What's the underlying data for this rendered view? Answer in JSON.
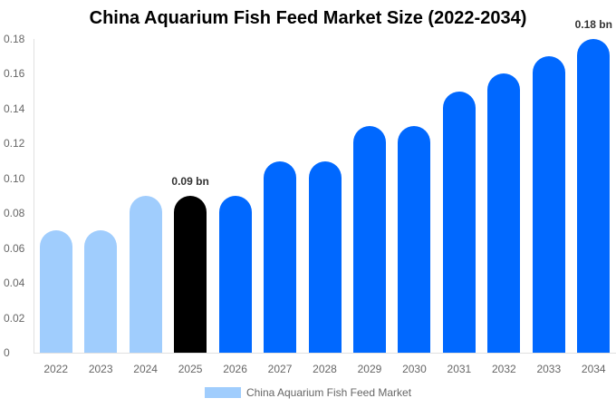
{
  "chart_data": {
    "type": "bar",
    "title": "China Aquarium Fish Feed Market Size (2022-2034)",
    "xlabel": "",
    "ylabel": "",
    "ylim": [
      0,
      0.18
    ],
    "yticks": [
      "0",
      "0.02",
      "0.04",
      "0.06",
      "0.08",
      "0.10",
      "0.12",
      "0.14",
      "0.16",
      "0.18"
    ],
    "grid": false,
    "legend_position": "bottom",
    "categories": [
      "2022",
      "2023",
      "2024",
      "2025",
      "2026",
      "2027",
      "2028",
      "2029",
      "2030",
      "2031",
      "2032",
      "2033",
      "2034"
    ],
    "series": [
      {
        "name": "China Aquarium Fish Feed Market",
        "values": [
          0.07,
          0.07,
          0.09,
          0.09,
          0.09,
          0.11,
          0.11,
          0.13,
          0.13,
          0.15,
          0.16,
          0.17,
          0.18
        ]
      }
    ],
    "bar_colors": [
      "#a0cdfd",
      "#a0cdfd",
      "#a0cdfd",
      "#000000",
      "#0068ff",
      "#0068ff",
      "#0068ff",
      "#0068ff",
      "#0068ff",
      "#0068ff",
      "#0068ff",
      "#0068ff",
      "#0068ff"
    ],
    "annotations": [
      {
        "category": "2025",
        "text": "0.09 bn"
      },
      {
        "category": "2034",
        "text": "0.18 bn"
      }
    ]
  },
  "legend": {
    "label": "China Aquarium Fish Feed Market",
    "color": "#a0cdfd"
  }
}
